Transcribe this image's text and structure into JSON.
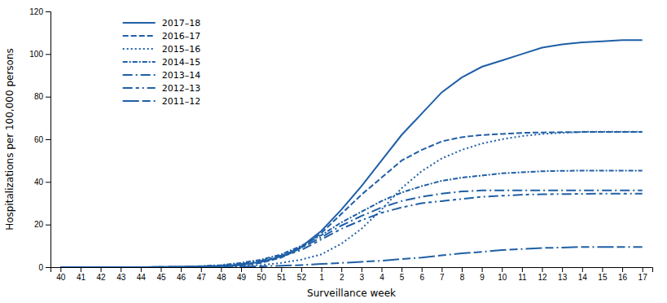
{
  "chart_data": {
    "type": "line",
    "xlabel": "Surveillance week",
    "ylabel": "Hospitalizations per 100,000 persons",
    "categories": [
      "40",
      "41",
      "42",
      "43",
      "44",
      "45",
      "46",
      "47",
      "48",
      "49",
      "50",
      "51",
      "52",
      "1",
      "2",
      "3",
      "4",
      "5",
      "6",
      "7",
      "8",
      "9",
      "10",
      "11",
      "12",
      "13",
      "14",
      "15",
      "16",
      "17"
    ],
    "ylim": [
      0,
      120
    ],
    "yticks": [
      0,
      20,
      40,
      60,
      80,
      100,
      120
    ],
    "legend": "upper-left",
    "grid": false,
    "series": [
      {
        "name": "2017–18",
        "color": "#1F5FA6",
        "line_style": "solid",
        "values": [
          0.0,
          0.0,
          0.0,
          0.0,
          0.0,
          0.1,
          0.1,
          0.3,
          0.5,
          1.2,
          2.5,
          5.0,
          9.5,
          17.0,
          27.0,
          38.0,
          50.0,
          62.0,
          72.0,
          82.0,
          89.0,
          94.0,
          97.0,
          100.0,
          103.0,
          104.5,
          105.5,
          106.0,
          106.5,
          106.5
        ]
      },
      {
        "name": "2016–17",
        "color": "#1F5FA6",
        "line_style": "dashed",
        "values": [
          0.0,
          0.0,
          0.0,
          0.0,
          0.0,
          0.1,
          0.1,
          0.2,
          0.4,
          0.8,
          2.0,
          4.5,
          9.0,
          16.0,
          25.0,
          34.0,
          42.0,
          50.0,
          55.0,
          59.0,
          61.0,
          62.0,
          62.5,
          63.0,
          63.2,
          63.3,
          63.4,
          63.4,
          63.4,
          63.4
        ]
      },
      {
        "name": "2015–16",
        "color": "#1F5FA6",
        "line_style": "dotted",
        "values": [
          0.0,
          0.0,
          0.0,
          0.0,
          0.0,
          0.0,
          0.1,
          0.1,
          0.3,
          0.5,
          1.0,
          2.0,
          3.5,
          6.0,
          11.0,
          18.0,
          27.0,
          37.0,
          45.0,
          51.0,
          55.0,
          58.0,
          60.0,
          61.5,
          62.5,
          63.0,
          63.5,
          63.5,
          63.5,
          63.5
        ]
      },
      {
        "name": "2014–15",
        "color": "#1F5FA6",
        "line_style": "dashdot_fine",
        "values": [
          0.0,
          0.0,
          0.0,
          0.0,
          0.0,
          0.1,
          0.2,
          0.5,
          1.0,
          2.0,
          3.5,
          6.0,
          10.0,
          15.0,
          21.0,
          26.0,
          31.0,
          35.0,
          38.0,
          40.5,
          42.0,
          43.0,
          44.0,
          44.5,
          45.0,
          45.2,
          45.3,
          45.3,
          45.3,
          45.3
        ]
      },
      {
        "name": "2013–14",
        "color": "#1F5FA6",
        "line_style": "dashdot",
        "values": [
          0.0,
          0.0,
          0.0,
          0.0,
          0.0,
          0.1,
          0.2,
          0.4,
          0.7,
          1.5,
          3.0,
          5.5,
          9.0,
          14.0,
          19.5,
          24.0,
          28.0,
          31.0,
          33.0,
          34.5,
          35.5,
          36.0,
          36.0,
          36.0,
          36.0,
          36.0,
          36.0,
          36.0,
          36.0,
          36.0
        ]
      },
      {
        "name": "2012–13",
        "color": "#1F5FA6",
        "line_style": "dash_dotdot",
        "values": [
          0.0,
          0.0,
          0.0,
          0.0,
          0.0,
          0.0,
          0.1,
          0.2,
          0.5,
          1.0,
          2.5,
          5.0,
          8.0,
          13.0,
          18.0,
          22.0,
          25.5,
          28.0,
          30.0,
          31.0,
          32.0,
          33.0,
          33.5,
          34.0,
          34.2,
          34.3,
          34.4,
          34.5,
          34.5,
          34.5
        ]
      },
      {
        "name": "2011–12",
        "color": "#1F5FA6",
        "line_style": "long_dash_dotdot",
        "values": [
          0.0,
          0.0,
          0.0,
          0.0,
          0.0,
          0.0,
          0.0,
          0.0,
          0.1,
          0.2,
          0.4,
          0.7,
          1.0,
          1.5,
          2.0,
          2.5,
          3.0,
          3.8,
          4.5,
          5.5,
          6.5,
          7.2,
          8.0,
          8.5,
          9.0,
          9.2,
          9.5,
          9.5,
          9.5,
          9.5
        ]
      }
    ]
  }
}
